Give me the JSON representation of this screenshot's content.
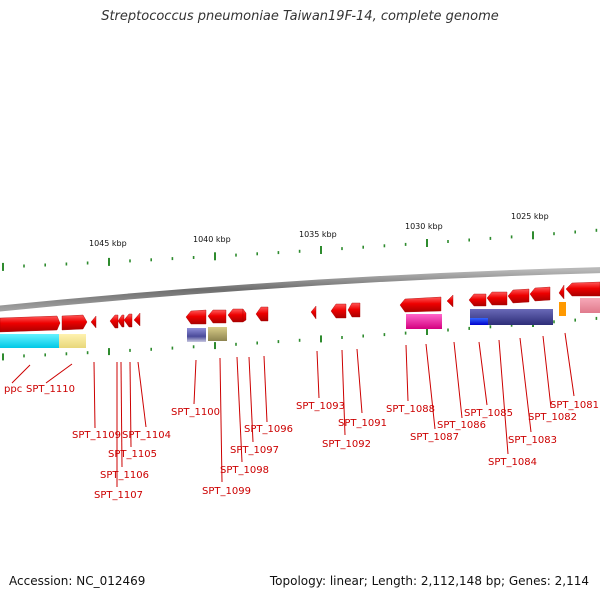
{
  "title": "Streptococcus pneumoniae Taiwan19F-14, complete genome",
  "footer": {
    "accession": "Accession: NC_012469",
    "summary": "Topology: linear; Length: 2,112,148 bp; Genes: 2,114"
  },
  "colors": {
    "backbone": "#8c8c8c",
    "gene": "#e60000",
    "label": "#cc0000",
    "tick": "#2e8b2e"
  },
  "scale_labels": [
    "1045 kbp",
    "1040 kbp",
    "1035 kbp",
    "1030 kbp",
    "1025 kbp"
  ],
  "gene_labels": [
    "ppc",
    "SPT_1110",
    "SPT_1109",
    "SPT_1104",
    "SPT_1105",
    "SPT_1106",
    "SPT_1107",
    "SPT_1100",
    "SPT_1099",
    "SPT_1098",
    "SPT_1097",
    "SPT_1096",
    "SPT_1093",
    "SPT_1092",
    "SPT_1091",
    "SPT_1088",
    "SPT_1087",
    "SPT_1086",
    "SPT_1085",
    "SPT_1084",
    "SPT_1083",
    "SPT_1082",
    "SPT_1081"
  ]
}
